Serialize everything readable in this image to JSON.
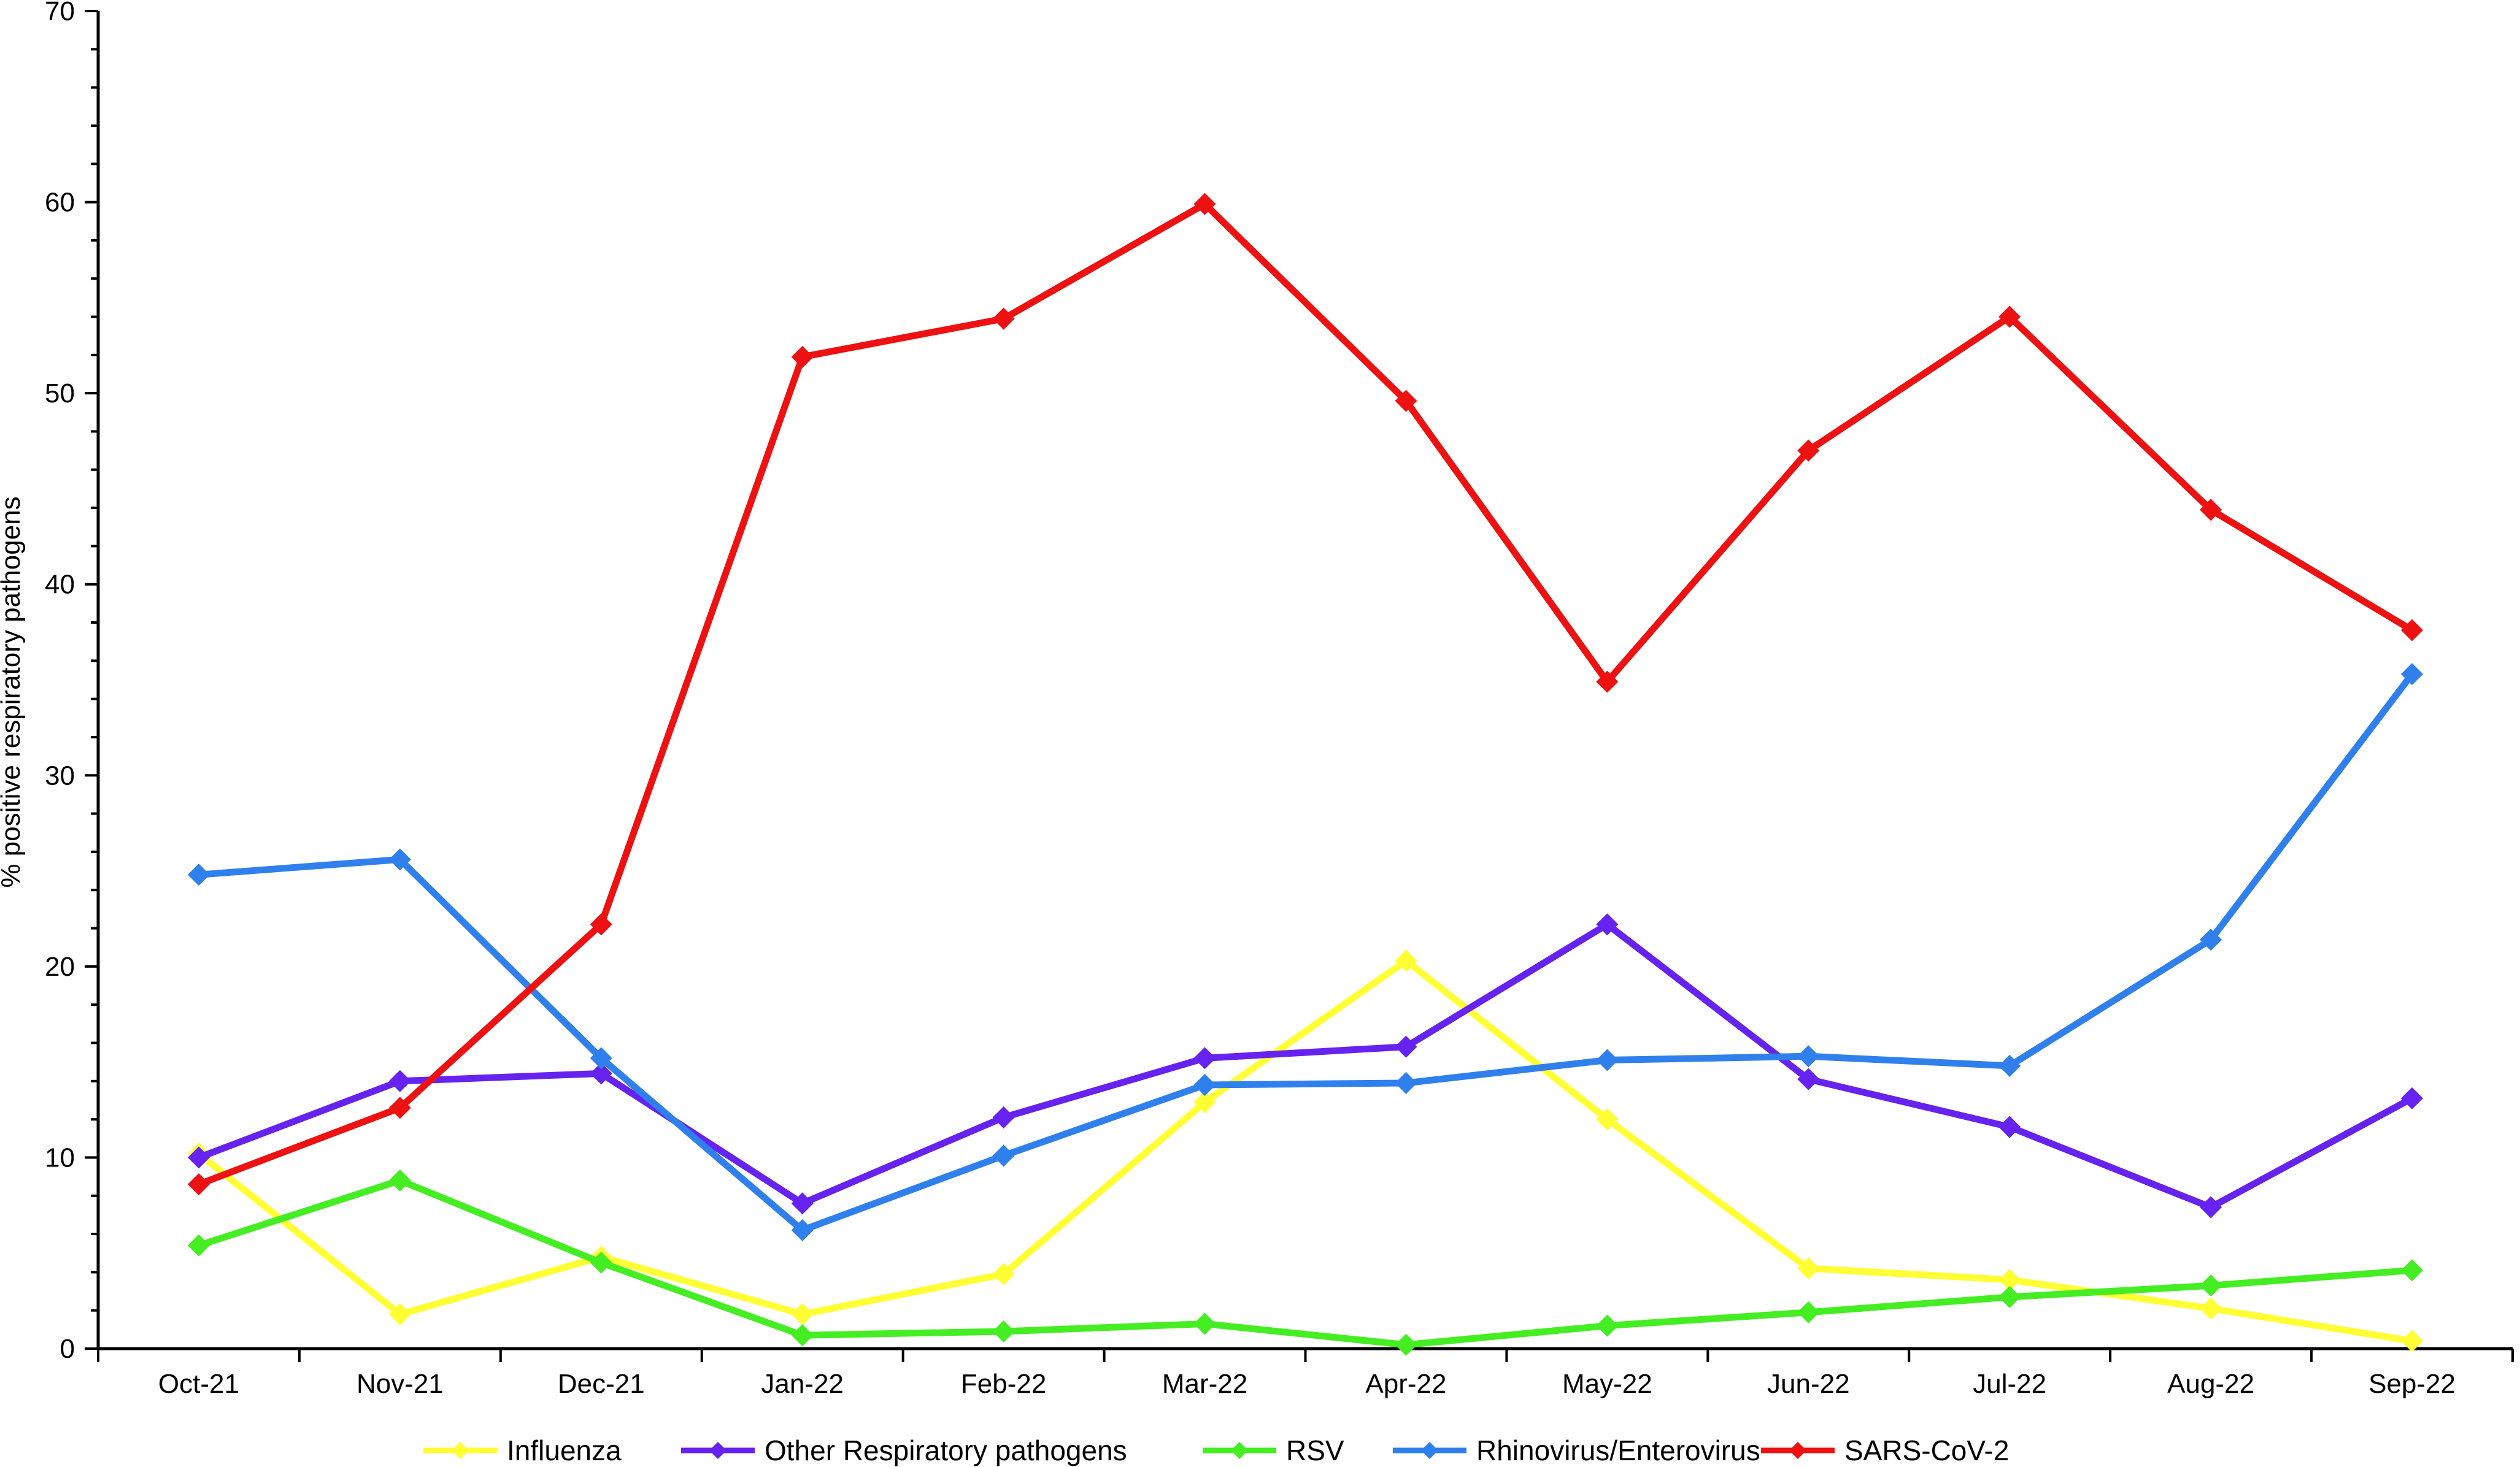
{
  "chart_data": {
    "type": "line",
    "title": "",
    "xlabel": "",
    "ylabel": "% positive respiratory pathogens",
    "ylim": [
      0,
      70
    ],
    "yticks": [
      0,
      10,
      20,
      30,
      40,
      50,
      60,
      70
    ],
    "grid": false,
    "legend_position": "bottom",
    "categories": [
      "Oct-21",
      "Nov-21",
      "Dec-21",
      "Jan-22",
      "Feb-22",
      "Mar-22",
      "Apr-22",
      "May-22",
      "Jun-22",
      "Jul-22",
      "Aug-22",
      "Sep-22"
    ],
    "series": [
      {
        "name": "Influenza",
        "color": "#ffff33",
        "values": [
          10.2,
          1.8,
          4.8,
          1.8,
          3.9,
          12.9,
          20.3,
          12.0,
          4.2,
          3.6,
          2.1,
          0.4
        ]
      },
      {
        "name": "Other Respiratory pathogens",
        "color": "#6622ee",
        "values": [
          10.0,
          14.0,
          14.4,
          7.6,
          12.1,
          15.2,
          15.8,
          22.2,
          14.1,
          11.6,
          7.4,
          13.1
        ]
      },
      {
        "name": "RSV",
        "color": "#44ee22",
        "values": [
          5.4,
          8.8,
          4.5,
          0.7,
          0.9,
          1.3,
          0.2,
          1.2,
          1.9,
          2.7,
          3.3,
          4.1
        ]
      },
      {
        "name": "Rhinovirus/Enterovirus",
        "color": "#2f80ed",
        "values": [
          24.8,
          25.6,
          15.2,
          6.2,
          10.1,
          13.8,
          13.9,
          15.1,
          15.3,
          14.8,
          21.4,
          35.3
        ]
      },
      {
        "name": "SARS-CoV-2",
        "color": "#ee1111",
        "values": [
          8.6,
          12.6,
          22.2,
          51.9,
          53.9,
          59.9,
          49.6,
          34.9,
          47.0,
          54.0,
          43.9,
          37.6
        ]
      }
    ]
  }
}
